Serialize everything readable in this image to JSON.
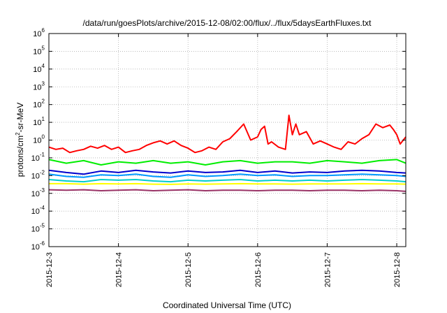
{
  "chart_data": {
    "type": "line",
    "title": "/data/run/goesPlots/archive/2015-12-08/02:00/flux/../flux/5daysEarthFluxes.txt",
    "xlabel": "Coordinated Universal Time (UTC)",
    "ylabel": {
      "pre": "protons/cm",
      "sup": "2",
      "post": "-sr-MeV"
    },
    "xlim": [
      0,
      5.13
    ],
    "ylog": true,
    "ylim": [
      1e-06,
      1000000.0
    ],
    "grid": true,
    "x_ticks": [
      {
        "label": "2015-12-3",
        "x": 0
      },
      {
        "label": "2015-12-4",
        "x": 1
      },
      {
        "label": "2015-12-5",
        "x": 2
      },
      {
        "label": "2015-12-6",
        "x": 3
      },
      {
        "label": "2015-12-7",
        "x": 4
      },
      {
        "label": "2015-12-8",
        "x": 5
      }
    ],
    "y_ticks": [
      {
        "base": "10",
        "exp": "-6",
        "value": 1e-06
      },
      {
        "base": "10",
        "exp": "-5",
        "value": 1e-05
      },
      {
        "base": "10",
        "exp": "-4",
        "value": 0.0001
      },
      {
        "base": "10",
        "exp": "-3",
        "value": 0.001
      },
      {
        "base": "10",
        "exp": "-2",
        "value": 0.01
      },
      {
        "base": "10",
        "exp": "-1",
        "value": 0.1
      },
      {
        "base": "10",
        "exp": "0",
        "value": 1
      },
      {
        "base": "10",
        "exp": "1",
        "value": 10
      },
      {
        "base": "10",
        "exp": "2",
        "value": 100
      },
      {
        "base": "10",
        "exp": "3",
        "value": 1000
      },
      {
        "base": "10",
        "exp": "4",
        "value": 10000
      },
      {
        "base": "10",
        "exp": "5",
        "value": 100000
      },
      {
        "base": "10",
        "exp": "6",
        "value": 1000000
      }
    ],
    "series": [
      {
        "color": "#ff0000",
        "x": [
          0,
          0.1,
          0.2,
          0.3,
          0.4,
          0.5,
          0.6,
          0.7,
          0.8,
          0.9,
          1.0,
          1.1,
          1.2,
          1.3,
          1.4,
          1.5,
          1.6,
          1.7,
          1.8,
          1.9,
          2.0,
          2.1,
          2.2,
          2.3,
          2.4,
          2.5,
          2.6,
          2.7,
          2.8,
          2.9,
          3.0,
          3.05,
          3.1,
          3.15,
          3.2,
          3.3,
          3.4,
          3.45,
          3.5,
          3.55,
          3.6,
          3.7,
          3.8,
          3.9,
          4.0,
          4.1,
          4.2,
          4.3,
          4.4,
          4.5,
          4.6,
          4.7,
          4.8,
          4.9,
          4.95,
          5.0,
          5.05,
          5.13
        ],
        "y": [
          0.4,
          0.3,
          0.35,
          0.2,
          0.25,
          0.3,
          0.45,
          0.35,
          0.5,
          0.3,
          0.4,
          0.2,
          0.25,
          0.3,
          0.5,
          0.7,
          0.9,
          0.6,
          0.9,
          0.5,
          0.35,
          0.2,
          0.25,
          0.4,
          0.3,
          0.8,
          1.2,
          3.0,
          8.0,
          1.0,
          1.5,
          4.0,
          6.0,
          0.6,
          0.8,
          0.4,
          0.3,
          25.0,
          2.0,
          8.0,
          2.0,
          3.0,
          0.6,
          0.9,
          0.6,
          0.4,
          0.3,
          0.8,
          0.6,
          1.2,
          2.0,
          8.0,
          5.0,
          7.0,
          4.0,
          2.0,
          0.6,
          1.5
        ]
      },
      {
        "color": "#00ee00",
        "x": [
          0,
          0.25,
          0.5,
          0.75,
          1.0,
          1.25,
          1.5,
          1.75,
          2.0,
          2.25,
          2.5,
          2.75,
          3.0,
          3.25,
          3.5,
          3.75,
          4.0,
          4.25,
          4.5,
          4.75,
          5.0,
          5.13
        ],
        "y": [
          0.08,
          0.05,
          0.07,
          0.04,
          0.06,
          0.05,
          0.07,
          0.05,
          0.06,
          0.04,
          0.06,
          0.07,
          0.05,
          0.06,
          0.06,
          0.05,
          0.07,
          0.06,
          0.05,
          0.07,
          0.08,
          0.05
        ]
      },
      {
        "color": "#0000cc",
        "x": [
          0,
          0.25,
          0.5,
          0.75,
          1.0,
          1.25,
          1.5,
          1.75,
          2.0,
          2.25,
          2.5,
          2.75,
          3.0,
          3.25,
          3.5,
          3.75,
          4.0,
          4.25,
          4.5,
          4.75,
          5.0,
          5.13
        ],
        "y": [
          0.02,
          0.015,
          0.012,
          0.018,
          0.015,
          0.02,
          0.016,
          0.014,
          0.018,
          0.015,
          0.016,
          0.02,
          0.015,
          0.018,
          0.014,
          0.016,
          0.015,
          0.018,
          0.02,
          0.018,
          0.015,
          0.014
        ]
      },
      {
        "color": "#0099ff",
        "x": [
          0,
          0.25,
          0.5,
          0.75,
          1.0,
          1.25,
          1.5,
          1.75,
          2.0,
          2.25,
          2.5,
          2.75,
          3.0,
          3.25,
          3.5,
          3.75,
          4.0,
          4.25,
          4.5,
          4.75,
          5.0,
          5.13
        ],
        "y": [
          0.012,
          0.009,
          0.008,
          0.011,
          0.01,
          0.012,
          0.009,
          0.008,
          0.011,
          0.009,
          0.01,
          0.012,
          0.01,
          0.011,
          0.009,
          0.01,
          0.01,
          0.011,
          0.012,
          0.011,
          0.01,
          0.009
        ]
      },
      {
        "color": "#00cccc",
        "x": [
          0,
          0.25,
          0.5,
          0.75,
          1.0,
          1.25,
          1.5,
          1.75,
          2.0,
          2.25,
          2.5,
          2.75,
          3.0,
          3.25,
          3.5,
          3.75,
          4.0,
          4.25,
          4.5,
          4.75,
          5.0,
          5.13
        ],
        "y": [
          0.006,
          0.005,
          0.0045,
          0.006,
          0.0055,
          0.006,
          0.005,
          0.0045,
          0.0055,
          0.005,
          0.0055,
          0.006,
          0.005,
          0.0055,
          0.005,
          0.0055,
          0.005,
          0.0055,
          0.006,
          0.0055,
          0.005,
          0.0045
        ]
      },
      {
        "color": "#ffff00",
        "x": [
          0,
          0.25,
          0.5,
          0.75,
          1.0,
          1.25,
          1.5,
          1.75,
          2.0,
          2.25,
          2.5,
          2.75,
          3.0,
          3.25,
          3.5,
          3.75,
          4.0,
          4.25,
          4.5,
          4.75,
          5.0,
          5.13
        ],
        "y": [
          0.0035,
          0.0035,
          0.0033,
          0.0035,
          0.0034,
          0.0035,
          0.0033,
          0.0032,
          0.0034,
          0.0033,
          0.0034,
          0.0035,
          0.0034,
          0.0034,
          0.0033,
          0.0034,
          0.0034,
          0.0034,
          0.0035,
          0.0034,
          0.0034,
          0.0033
        ]
      },
      {
        "color": "#993366",
        "x": [
          0,
          0.25,
          0.5,
          0.75,
          1.0,
          1.25,
          1.5,
          1.75,
          2.0,
          2.25,
          2.5,
          2.75,
          3.0,
          3.25,
          3.5,
          3.75,
          4.0,
          4.25,
          4.5,
          4.75,
          5.0,
          5.13
        ],
        "y": [
          0.0016,
          0.0015,
          0.0016,
          0.0014,
          0.0015,
          0.0016,
          0.0014,
          0.0015,
          0.0016,
          0.0014,
          0.0015,
          0.0015,
          0.0014,
          0.0015,
          0.0015,
          0.0014,
          0.0015,
          0.0015,
          0.0014,
          0.0015,
          0.0014,
          0.0013
        ]
      }
    ]
  }
}
